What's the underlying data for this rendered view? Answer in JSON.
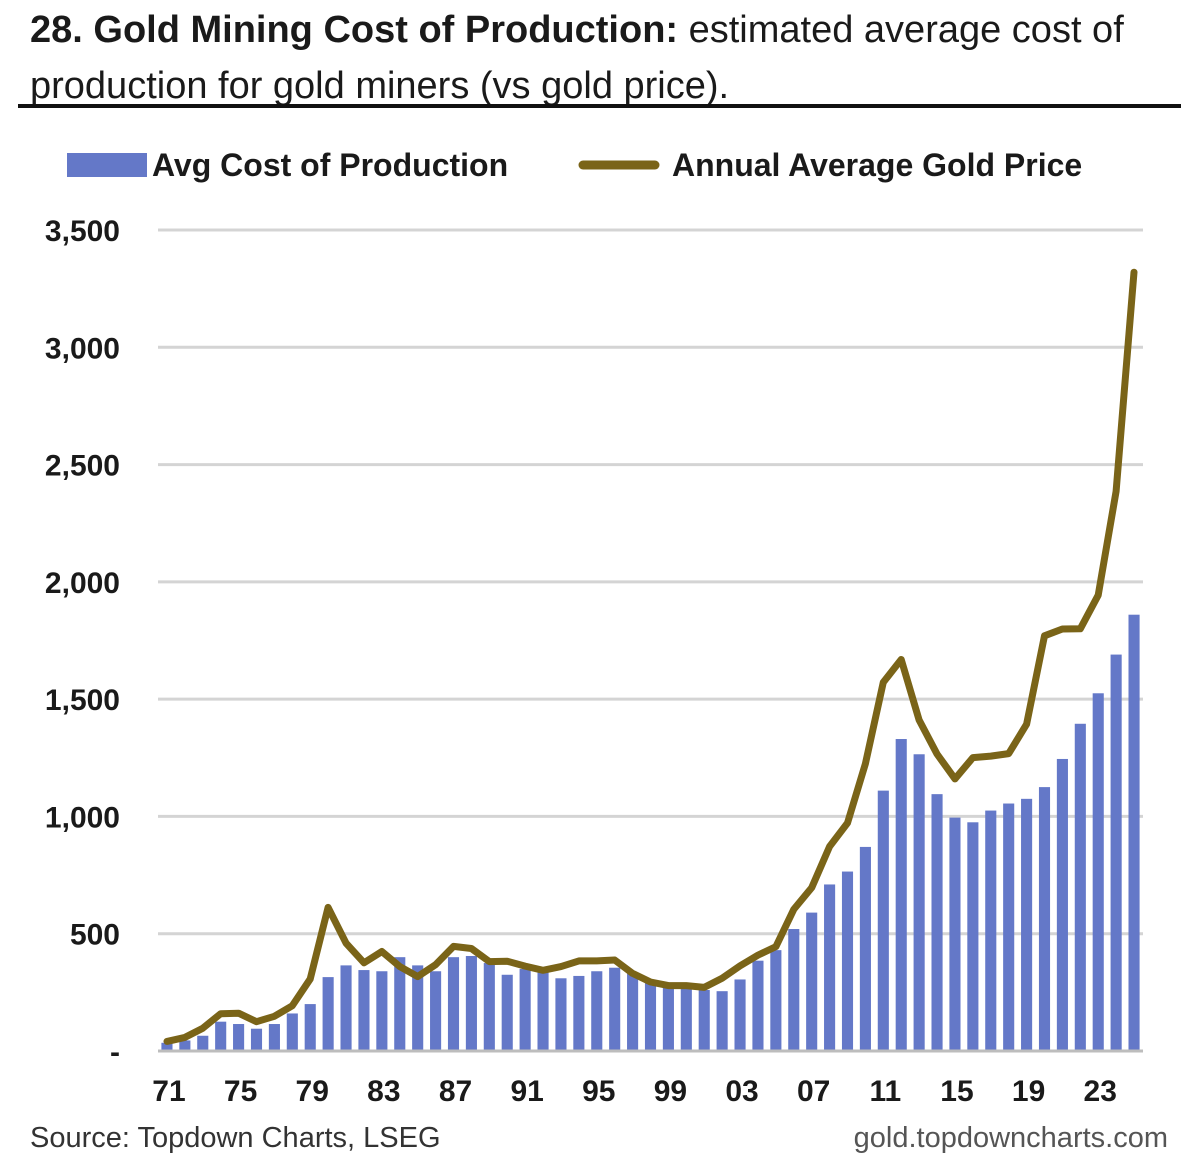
{
  "header": {
    "title_bold": "28. Gold Mining Cost of Production:",
    "title_rest": " estimated average cost of production for gold miners (vs gold price)."
  },
  "footer": {
    "source": "Source: Topdown Charts, LSEG",
    "website": "gold.topdowncharts.com"
  },
  "chart_data": {
    "type": "bar+line",
    "legend": {
      "placement": "top",
      "entries": [
        "Avg Cost of Production",
        "Annual Average Gold Price"
      ]
    },
    "colors": {
      "bars": "#6478c8",
      "line": "#7a6418",
      "grid": "#d4d4d4"
    },
    "ylim": [
      0,
      3500
    ],
    "grid": true,
    "y_ticks": [
      {
        "value": 0,
        "label": "-"
      },
      {
        "value": 500,
        "label": "500"
      },
      {
        "value": 1000,
        "label": "1,000"
      },
      {
        "value": 1500,
        "label": "1,500"
      },
      {
        "value": 2000,
        "label": "2,000"
      },
      {
        "value": 2500,
        "label": "2,500"
      },
      {
        "value": 3000,
        "label": "3,000"
      },
      {
        "value": 3500,
        "label": "3,500"
      }
    ],
    "x": [
      1971,
      1972,
      1973,
      1974,
      1975,
      1976,
      1977,
      1978,
      1979,
      1980,
      1981,
      1982,
      1983,
      1984,
      1985,
      1986,
      1987,
      1988,
      1989,
      1990,
      1991,
      1992,
      1993,
      1994,
      1995,
      1996,
      1997,
      1998,
      1999,
      2000,
      2001,
      2002,
      2003,
      2004,
      2005,
      2006,
      2007,
      2008,
      2009,
      2010,
      2011,
      2012,
      2013,
      2014,
      2015,
      2016,
      2017,
      2018,
      2019,
      2020,
      2021,
      2022,
      2023,
      2024,
      2025
    ],
    "x_tick_labels": [
      {
        "x": 1971,
        "label": "71"
      },
      {
        "x": 1975,
        "label": "75"
      },
      {
        "x": 1979,
        "label": "79"
      },
      {
        "x": 1983,
        "label": "83"
      },
      {
        "x": 1987,
        "label": "87"
      },
      {
        "x": 1991,
        "label": "91"
      },
      {
        "x": 1995,
        "label": "95"
      },
      {
        "x": 1999,
        "label": "99"
      },
      {
        "x": 2003,
        "label": "03"
      },
      {
        "x": 2007,
        "label": "07"
      },
      {
        "x": 2011,
        "label": "11"
      },
      {
        "x": 2015,
        "label": "15"
      },
      {
        "x": 2019,
        "label": "19"
      },
      {
        "x": 2023,
        "label": "23"
      }
    ],
    "series": [
      {
        "name": "Avg Cost of Production",
        "kind": "bar",
        "values": [
          35,
          45,
          65,
          125,
          115,
          95,
          115,
          160,
          200,
          315,
          365,
          345,
          340,
          400,
          365,
          340,
          400,
          405,
          375,
          325,
          350,
          345,
          310,
          320,
          340,
          355,
          330,
          290,
          275,
          265,
          260,
          255,
          305,
          385,
          430,
          520,
          590,
          710,
          765,
          870,
          1110,
          1330,
          1265,
          1095,
          995,
          975,
          1025,
          1055,
          1075,
          1125,
          1245,
          1395,
          1525,
          1690,
          1860
        ]
      },
      {
        "name": "Annual Average Gold Price",
        "kind": "line",
        "values": [
          41,
          58,
          97,
          159,
          161,
          125,
          148,
          193,
          307,
          612,
          460,
          376,
          424,
          360,
          317,
          368,
          446,
          437,
          381,
          383,
          362,
          344,
          360,
          384,
          384,
          388,
          331,
          294,
          279,
          279,
          271,
          310,
          363,
          409,
          445,
          604,
          696,
          872,
          972,
          1225,
          1572,
          1669,
          1411,
          1266,
          1160,
          1251,
          1257,
          1268,
          1393,
          1770,
          1799,
          1800,
          1943,
          2386,
          3320
        ]
      }
    ]
  }
}
